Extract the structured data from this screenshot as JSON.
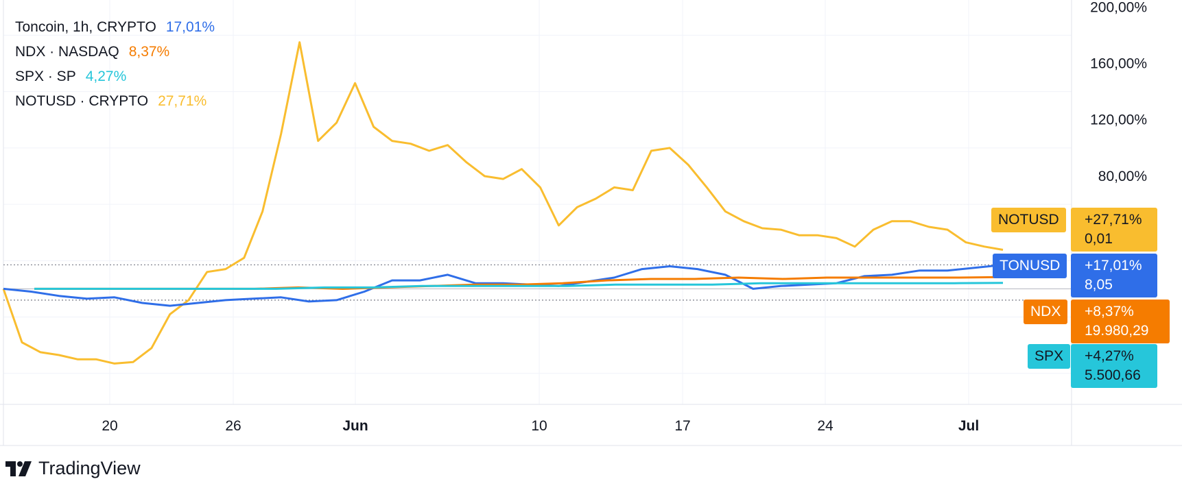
{
  "legend": [
    {
      "symbol": "Toncoin, 1h, CRYPTO",
      "value": "17,01%",
      "color": "#2f6ee8"
    },
    {
      "symbol": "NDX · NASDAQ",
      "value": "8,37%",
      "color": "#f57c00"
    },
    {
      "symbol": "SPX · SP",
      "value": "4,27%",
      "color": "#26c6da"
    },
    {
      "symbol": "NOTUSD · CRYPTO",
      "value": "27,71%",
      "color": "#f9bd2f"
    }
  ],
  "price_labels": [
    {
      "tag": "NOTUSD",
      "change": "+27,71%",
      "price": "0,01",
      "bg": "#f9bd2f",
      "fg": "#131722"
    },
    {
      "tag": "TONUSD",
      "change": "+17,01%",
      "price": "8,05",
      "bg": "#2f6ee8",
      "fg": "#ffffff"
    },
    {
      "tag": "NDX",
      "change": "+8,37%",
      "price": "19.980,29",
      "bg": "#f57c00",
      "fg": "#ffffff"
    },
    {
      "tag": "SPX",
      "change": "+4,27%",
      "price": "5.500,66",
      "bg": "#26c6da",
      "fg": "#131722"
    }
  ],
  "branding": {
    "name": "TradingView"
  },
  "chart_data": {
    "type": "line",
    "x_ticks": [
      "20",
      "26",
      "Jun",
      "10",
      "17",
      "24",
      "Jul"
    ],
    "y_ticks": [
      "80,00%",
      "120,00%",
      "160,00%",
      "200,00%"
    ],
    "ylim": [
      -82,
      205
    ],
    "y_unit": "%",
    "grid": true,
    "legend_position": "top-left",
    "series": [
      {
        "name": "NOTUSD",
        "color": "#f9bd2f",
        "values": [
          0,
          -38,
          -45,
          -47,
          -50,
          -50,
          -53,
          -52,
          -42,
          -18,
          -8,
          12,
          14,
          22,
          55,
          110,
          175,
          105,
          118,
          146,
          115,
          105,
          103,
          98,
          102,
          90,
          80,
          78,
          85,
          72,
          45,
          58,
          64,
          72,
          70,
          98,
          100,
          88,
          72,
          55,
          48,
          43,
          42,
          38,
          38,
          36,
          30,
          42,
          48,
          48,
          44,
          42,
          33,
          30,
          27.71
        ]
      },
      {
        "name": "TONUSD",
        "color": "#2f6ee8",
        "values": [
          0,
          -2,
          -5,
          -7,
          -6,
          -10,
          -12,
          -10,
          -8,
          -7,
          -6,
          -9,
          -8,
          -2,
          6,
          6,
          10,
          4,
          4,
          3,
          2,
          5,
          8,
          14,
          16,
          14,
          10,
          0,
          2,
          3,
          4,
          9,
          10,
          13,
          13,
          15,
          17.01
        ]
      },
      {
        "name": "NDX",
        "color": "#f57c00",
        "values": [
          0,
          0,
          0,
          0,
          0,
          0,
          1,
          0,
          1,
          2,
          3,
          3,
          4,
          6,
          7,
          7,
          8,
          7,
          8,
          8,
          8,
          8,
          8.37
        ]
      },
      {
        "name": "SPX",
        "color": "#26c6da",
        "values": [
          0,
          0,
          0,
          0,
          0,
          0,
          1,
          1,
          2,
          2,
          2,
          2,
          3,
          3,
          3,
          4,
          4,
          4,
          4,
          4,
          4.27
        ]
      }
    ]
  }
}
